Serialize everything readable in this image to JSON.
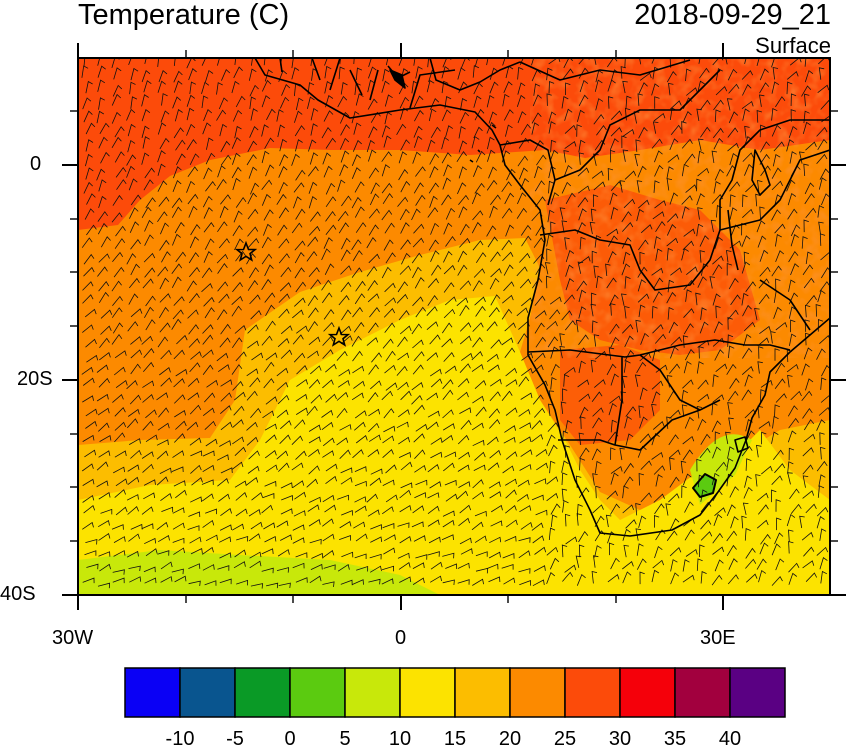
{
  "header": {
    "title": "Temperature (C)",
    "valid_time": "2018-09-29_21",
    "level": "Surface"
  },
  "axes": {
    "x_ticks": [
      "30W",
      "0",
      "30E"
    ],
    "y_ticks": [
      "0",
      "20S",
      "40S"
    ]
  },
  "colorbar": {
    "labels": [
      "-10",
      "-5",
      "0",
      "5",
      "10",
      "15",
      "20",
      "25",
      "30",
      "35",
      "40"
    ],
    "colors": [
      "#0a00f5",
      "#09558f",
      "#0a9a26",
      "#5bcb10",
      "#c8e80a",
      "#fce300",
      "#fcbd00",
      "#fc8a00",
      "#fc4b0a",
      "#f5000a",
      "#a2003e",
      "#5a0083"
    ]
  },
  "map": {
    "markers": [
      {
        "label": "station-star-1"
      },
      {
        "label": "station-star-2"
      }
    ]
  }
}
